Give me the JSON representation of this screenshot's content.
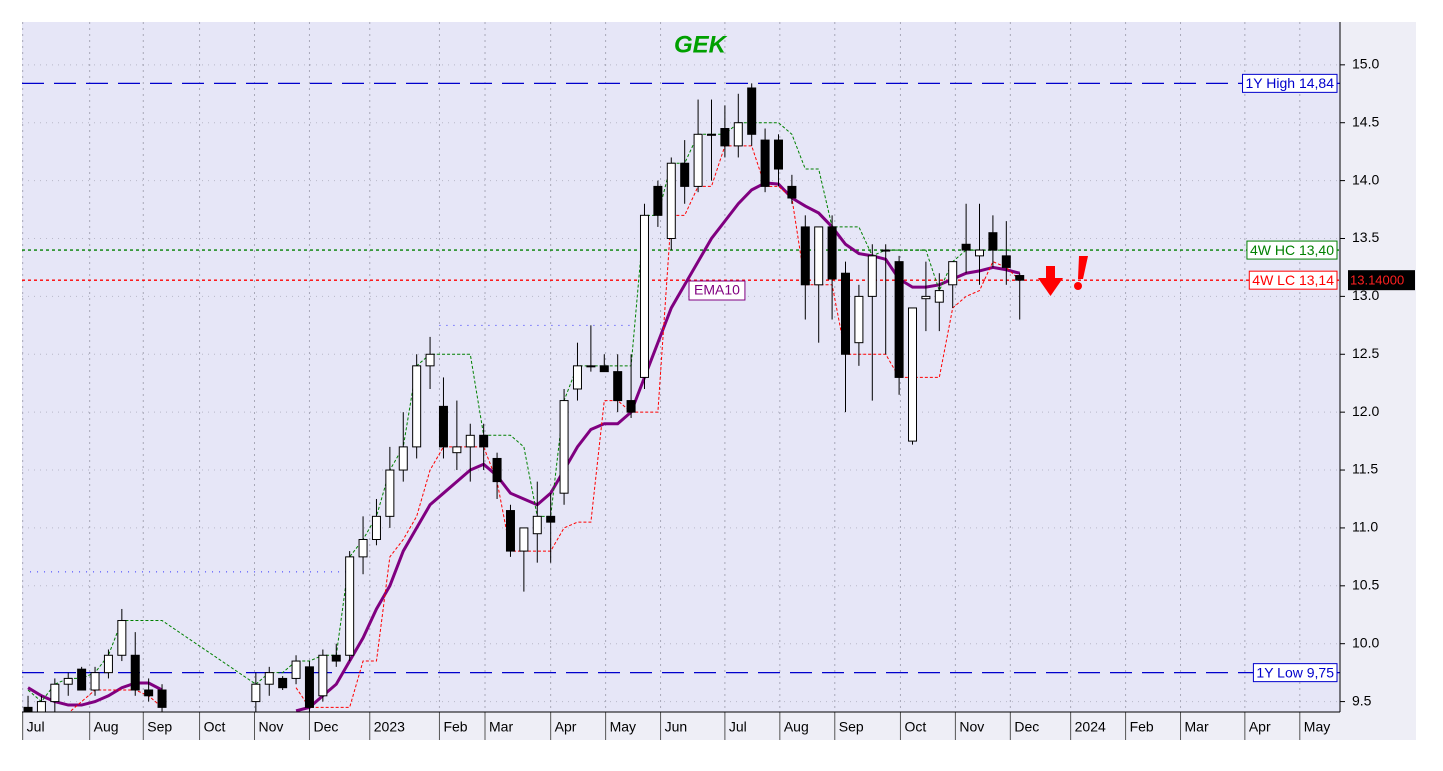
{
  "chart_data": {
    "type": "candlestick",
    "title": "GEK",
    "x": [
      0,
      1,
      2,
      3,
      4,
      5,
      6,
      7,
      8,
      9,
      10,
      17,
      18,
      19,
      20,
      21,
      22,
      23,
      24,
      25,
      26,
      27,
      28,
      29,
      30,
      31,
      32,
      33,
      34,
      35,
      36,
      37,
      38,
      39,
      40,
      41,
      42,
      43,
      44,
      45,
      46,
      47,
      48,
      49,
      50,
      51,
      52,
      53,
      54,
      55,
      56,
      57,
      58,
      59,
      60,
      61,
      62,
      63,
      64,
      65,
      66,
      67,
      68,
      69,
      70,
      71,
      72,
      73,
      74
    ],
    "open": [
      9.45,
      9.4,
      9.5,
      9.65,
      9.78,
      9.6,
      9.75,
      9.9,
      9.9,
      9.6,
      9.6,
      9.5,
      9.65,
      9.7,
      9.7,
      9.8,
      9.55,
      9.9,
      9.9,
      10.75,
      10.9,
      11.1,
      11.5,
      11.7,
      12.4,
      12.05,
      11.65,
      11.7,
      11.8,
      11.6,
      11.15,
      10.8,
      10.95,
      11.1,
      11.3,
      12.2,
      12.4,
      12.4,
      12.35,
      12.1,
      12.3,
      13.95,
      13.5,
      14.15,
      13.95,
      14.4,
      14.45,
      14.3,
      14.8,
      14.35,
      14.35,
      13.95,
      13.6,
      13.1,
      13.6,
      13.2,
      12.6,
      13.0,
      13.4,
      13.3,
      11.75,
      12.98,
      12.95,
      13.1,
      13.45,
      13.35,
      13.55,
      13.35,
      13.18
    ],
    "high": [
      9.55,
      9.55,
      9.7,
      9.75,
      9.8,
      9.8,
      9.95,
      10.3,
      10.1,
      9.7,
      9.65,
      9.75,
      9.8,
      9.72,
      9.9,
      9.85,
      9.95,
      10.0,
      10.8,
      11.1,
      11.25,
      11.7,
      12.0,
      12.5,
      12.65,
      12.3,
      12.1,
      11.9,
      11.9,
      11.65,
      11.2,
      11.0,
      11.4,
      11.3,
      12.2,
      12.6,
      12.75,
      12.5,
      12.5,
      12.5,
      13.8,
      14.0,
      14.2,
      14.35,
      14.7,
      14.7,
      14.65,
      14.75,
      14.84,
      14.45,
      14.4,
      14.05,
      13.7,
      13.6,
      13.7,
      13.3,
      13.1,
      13.45,
      13.45,
      13.35,
      12.9,
      13.3,
      13.2,
      13.3,
      13.8,
      13.8,
      13.7,
      13.65,
      13.2
    ],
    "low": [
      9.35,
      9.35,
      9.4,
      9.55,
      9.6,
      9.55,
      9.7,
      9.85,
      9.55,
      9.5,
      9.4,
      9.4,
      9.55,
      9.6,
      9.65,
      9.4,
      9.5,
      9.8,
      9.85,
      10.6,
      10.85,
      11.0,
      11.4,
      11.6,
      12.2,
      11.6,
      11.5,
      11.4,
      11.5,
      11.25,
      10.75,
      10.45,
      10.7,
      10.7,
      11.2,
      12.1,
      12.35,
      12.35,
      12.0,
      11.95,
      12.2,
      13.6,
      13.4,
      13.8,
      13.9,
      14.0,
      14.2,
      14.2,
      14.3,
      13.9,
      13.95,
      13.8,
      12.8,
      12.6,
      12.8,
      12.0,
      12.4,
      12.1,
      12.5,
      12.15,
      11.72,
      12.7,
      12.7,
      12.9,
      13.2,
      13.1,
      13.25,
      13.1,
      12.8
    ],
    "close": [
      9.4,
      9.5,
      9.65,
      9.7,
      9.6,
      9.75,
      9.9,
      10.2,
      9.6,
      9.55,
      9.45,
      9.65,
      9.75,
      9.62,
      9.85,
      9.45,
      9.9,
      9.85,
      10.75,
      10.9,
      11.1,
      11.5,
      11.7,
      12.4,
      12.5,
      11.7,
      11.7,
      11.8,
      11.7,
      11.4,
      10.8,
      11.0,
      11.1,
      11.05,
      12.1,
      12.4,
      12.4,
      12.35,
      12.1,
      12.0,
      13.7,
      13.7,
      14.15,
      13.95,
      14.4,
      14.4,
      14.3,
      14.5,
      14.4,
      13.95,
      14.1,
      13.85,
      13.1,
      13.6,
      13.15,
      12.5,
      13.0,
      13.35,
      13.4,
      12.3,
      12.9,
      13.0,
      13.05,
      13.3,
      13.4,
      13.4,
      13.4,
      13.25,
      13.14
    ],
    "series": [
      {
        "name": "EMA10",
        "color": "#800080",
        "width": 3,
        "dash": "none",
        "values": [
          9.62,
          9.55,
          9.5,
          9.47,
          9.47,
          9.5,
          9.55,
          9.62,
          9.66,
          9.66,
          9.6,
          null,
          null,
          null,
          9.42,
          9.45,
          9.55,
          9.65,
          9.85,
          10.05,
          10.3,
          10.5,
          10.8,
          11.0,
          11.2,
          11.3,
          11.4,
          11.5,
          11.55,
          11.45,
          11.3,
          11.25,
          11.2,
          11.3,
          11.5,
          11.7,
          11.85,
          11.9,
          11.9,
          12.0,
          12.3,
          12.6,
          12.9,
          13.1,
          13.3,
          13.5,
          13.65,
          13.8,
          13.92,
          13.98,
          13.97,
          13.85,
          13.78,
          13.72,
          13.6,
          13.45,
          13.37,
          13.35,
          13.32,
          13.15,
          13.08,
          13.08,
          13.1,
          13.15,
          13.2,
          13.22,
          13.25,
          13.23,
          13.2
        ]
      },
      {
        "color": "#008000",
        "width": 1,
        "dash": "3 2",
        "values": [
          9.6,
          9.5,
          9.65,
          9.7,
          9.7,
          9.75,
          9.9,
          10.2,
          10.2,
          10.2,
          10.2,
          9.65,
          9.75,
          9.75,
          9.85,
          9.85,
          9.9,
          9.9,
          10.75,
          10.9,
          11.1,
          11.5,
          11.7,
          12.4,
          12.5,
          12.5,
          12.5,
          12.5,
          11.8,
          11.8,
          11.8,
          11.7,
          11.1,
          11.1,
          12.1,
          12.4,
          12.4,
          12.4,
          12.4,
          12.4,
          13.7,
          13.7,
          14.15,
          14.15,
          14.4,
          14.4,
          14.4,
          14.5,
          14.5,
          14.5,
          14.5,
          14.4,
          14.1,
          14.1,
          13.6,
          13.6,
          13.6,
          13.35,
          13.4,
          13.4,
          13.4,
          13.4,
          13.05,
          13.3,
          13.4,
          13.4,
          13.4,
          13.4,
          13.4
        ]
      },
      {
        "color": "#ff0000",
        "width": 1,
        "dash": "3 2",
        "values": [
          9.35,
          9.4,
          9.4,
          9.4,
          9.5,
          9.6,
          9.6,
          9.6,
          9.6,
          9.55,
          9.45,
          null,
          null,
          null,
          9.62,
          9.45,
          9.45,
          9.45,
          9.45,
          9.85,
          9.85,
          10.75,
          10.9,
          11.1,
          11.5,
          11.7,
          11.7,
          11.7,
          11.7,
          11.4,
          10.8,
          10.8,
          10.8,
          10.8,
          11.0,
          11.05,
          11.05,
          12.1,
          12.1,
          12.0,
          12.0,
          12.0,
          13.7,
          13.7,
          13.95,
          13.95,
          14.3,
          14.3,
          14.3,
          13.95,
          13.95,
          13.85,
          13.1,
          13.1,
          13.1,
          12.5,
          12.5,
          12.5,
          12.5,
          12.3,
          12.3,
          12.3,
          12.3,
          12.9,
          13.0,
          13.05,
          13.3,
          13.25,
          13.14
        ]
      }
    ],
    "series_label": "EMA10",
    "levels": [
      {
        "label": "1Y High 14,84",
        "value": 14.84,
        "color": "#0000cc",
        "dash": "22 10"
      },
      {
        "label": "4W HC 13,40",
        "value": 13.4,
        "color": "#008000",
        "dash": "3 3"
      },
      {
        "label": "4W LC 13,14",
        "value": 13.14,
        "color": "#ff0000",
        "dash": "3 3"
      },
      {
        "label": "1Y Low 9,75",
        "value": 9.75,
        "color": "#0000cc",
        "dash": "22 10"
      }
    ],
    "dotted_levels": [
      {
        "value": 12.75,
        "from": 30.7,
        "to": 45
      },
      {
        "value": 10.62,
        "from": 0.15,
        "to": 24
      }
    ],
    "last_price": {
      "value": 13.14,
      "label": "13.14000"
    },
    "xlim": [
      -0.45,
      97.9
    ],
    "ylim": [
      9.41,
      15.37
    ],
    "yticks": [
      9.5,
      {
        "value": 10,
        "label": "10.0"
      },
      10.5,
      {
        "value": 11,
        "label": "11.0"
      },
      11.5,
      {
        "value": 12,
        "label": "12.0"
      },
      12.5,
      {
        "value": 13,
        "label": "13.0"
      },
      13.5,
      {
        "value": 14,
        "label": "14.0"
      },
      14.5,
      {
        "value": 15,
        "label": "15.0"
      }
    ],
    "xticks": [
      {
        "value": -0.4,
        "label": "Jul"
      },
      {
        "value": 4.6,
        "label": "Aug"
      },
      {
        "value": 8.6,
        "label": "Sep"
      },
      {
        "value": 12.8,
        "label": "Oct"
      },
      {
        "value": 16.9,
        "label": "Nov"
      },
      {
        "value": 21,
        "label": "Dec"
      },
      {
        "value": 25.5,
        "label": "2023"
      },
      {
        "value": 30.7,
        "label": "Feb"
      },
      {
        "value": 34.1,
        "label": "Mar"
      },
      {
        "value": 39,
        "label": "Apr"
      },
      {
        "value": 43.1,
        "label": "May"
      },
      {
        "value": 47.2,
        "label": "Jun"
      },
      {
        "value": 52,
        "label": "Jul"
      },
      {
        "value": 56.1,
        "label": "Aug"
      },
      {
        "value": 60.2,
        "label": "Sep"
      },
      {
        "value": 65.1,
        "label": "Oct"
      },
      {
        "value": 69.2,
        "label": "Nov"
      },
      {
        "value": 73.3,
        "label": "Dec"
      },
      {
        "value": 77.8,
        "label": "2024"
      },
      {
        "value": 81.9,
        "label": "Feb"
      },
      {
        "value": 86,
        "label": "Mar"
      },
      {
        "value": 90.8,
        "label": "Apr"
      },
      {
        "value": 94.9,
        "label": "May"
      }
    ],
    "grid": true
  }
}
